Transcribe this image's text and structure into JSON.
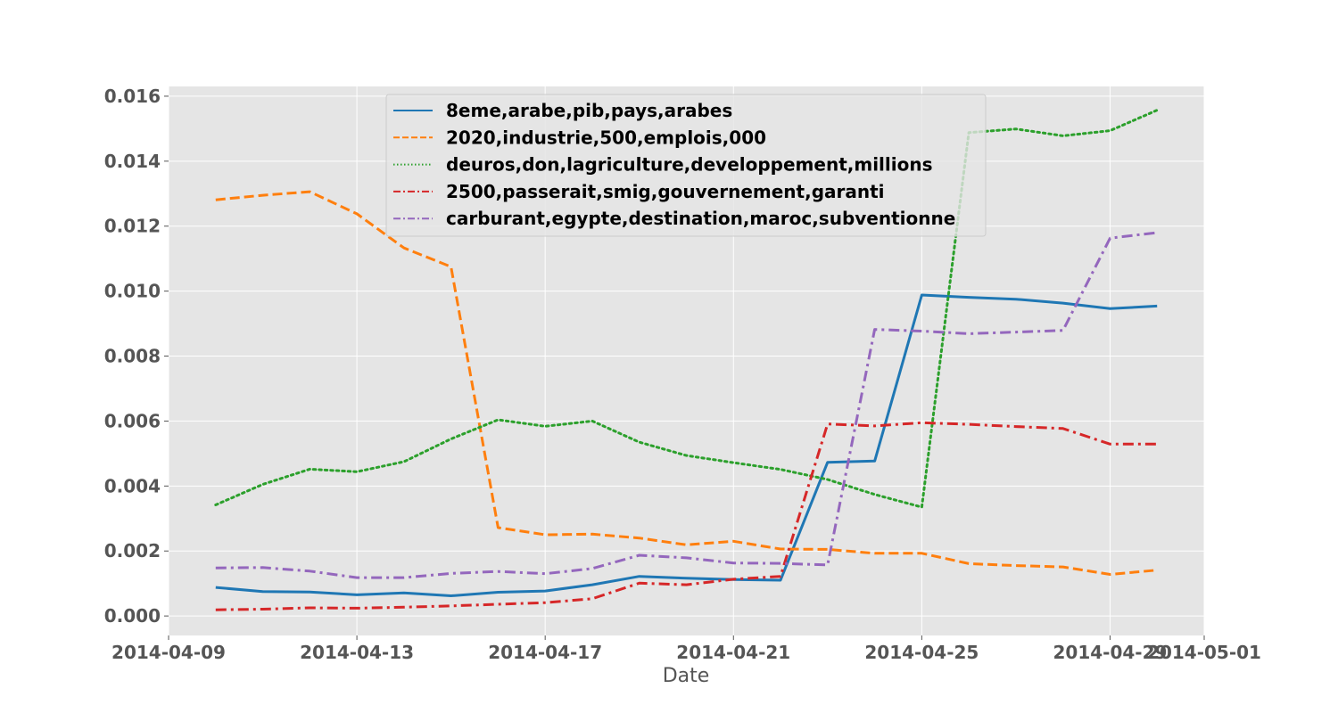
{
  "chart_data": {
    "type": "line",
    "title": "",
    "xlabel": "Date",
    "ylabel": "",
    "grid": true,
    "legend_position": "top-center",
    "x_ticks": [
      "2014-04-09",
      "2014-04-13",
      "2014-04-17",
      "2014-04-21",
      "2014-04-25",
      "2014-04-29",
      "2014-05-01"
    ],
    "y_ticks": [
      "0.000",
      "0.002",
      "0.004",
      "0.006",
      "0.008",
      "0.010",
      "0.012",
      "0.014",
      "0.016"
    ],
    "xlim": [
      "2014-04-09",
      "2014-05-01"
    ],
    "ylim": [
      -0.0006,
      0.0163
    ],
    "x": [
      "2014-04-10",
      "2014-04-11",
      "2014-04-12",
      "2014-04-13",
      "2014-04-14",
      "2014-04-15",
      "2014-04-16",
      "2014-04-17",
      "2014-04-18",
      "2014-04-19",
      "2014-04-20",
      "2014-04-21",
      "2014-04-22",
      "2014-04-23",
      "2014-04-24",
      "2014-04-25",
      "2014-04-26",
      "2014-04-27",
      "2014-04-28",
      "2014-04-29",
      "2014-04-30"
    ],
    "series": [
      {
        "name": "8eme,arabe,pib,pays,arabes",
        "color": "#1f77b4",
        "style": "solid",
        "values": [
          0.00088,
          0.00075,
          0.00074,
          0.00065,
          0.00071,
          0.00062,
          0.00073,
          0.00077,
          0.00096,
          0.00122,
          0.00116,
          0.00112,
          0.0011,
          0.00473,
          0.00477,
          0.00988,
          0.00981,
          0.00975,
          0.00963,
          0.00946,
          0.00954
        ]
      },
      {
        "name": "2020,industrie,500,emplois,000",
        "color": "#ff7f0e",
        "style": "dashed",
        "values": [
          0.01281,
          0.01295,
          0.01306,
          0.01238,
          0.01133,
          0.01075,
          0.00272,
          0.0025,
          0.00252,
          0.0024,
          0.00219,
          0.0023,
          0.00206,
          0.00205,
          0.00193,
          0.00193,
          0.00161,
          0.00155,
          0.00151,
          0.00128,
          0.00141
        ]
      },
      {
        "name": "deuros,don,lagriculture,developpement,millions",
        "color": "#2ca02c",
        "style": "dotted",
        "values": [
          0.00342,
          0.00405,
          0.00452,
          0.00444,
          0.00475,
          0.00545,
          0.00604,
          0.00584,
          0.006,
          0.00535,
          0.00494,
          0.00472,
          0.00451,
          0.0042,
          0.00374,
          0.00335,
          0.01488,
          0.01499,
          0.01478,
          0.01494,
          0.01557
        ]
      },
      {
        "name": "2500,passerait,smig,gouvernement,garanti",
        "color": "#d62728",
        "style": "dashdot",
        "values": [
          0.00019,
          0.00021,
          0.00025,
          0.00024,
          0.00027,
          0.00031,
          0.00036,
          0.00041,
          0.00053,
          0.00101,
          0.00096,
          0.00113,
          0.00122,
          0.00591,
          0.00585,
          0.00595,
          0.0059,
          0.00583,
          0.00577,
          0.00529,
          0.00529
        ]
      },
      {
        "name": "carburant,egypte,destination,maroc,subventionne",
        "color": "#9467bd",
        "style": "dashdot",
        "values": [
          0.00148,
          0.00149,
          0.00138,
          0.00118,
          0.00118,
          0.00131,
          0.00137,
          0.0013,
          0.00146,
          0.00187,
          0.00179,
          0.00163,
          0.00162,
          0.00157,
          0.00882,
          0.00877,
          0.00869,
          0.00874,
          0.00879,
          0.01163,
          0.0118
        ]
      }
    ]
  }
}
